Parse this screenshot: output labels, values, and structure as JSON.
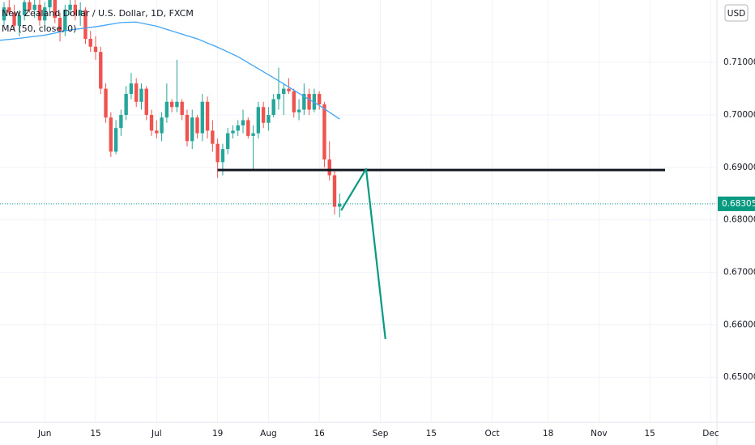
{
  "chart_data": {
    "type": "candlestick",
    "title": "New Zealand Dollar / U.S. Dollar, 1D, FXCM",
    "indicator_label": "MA (50, close, 0)",
    "currency": "USD",
    "xlim": [
      -8.8,
      132.2
    ],
    "ylim": [
      0.6414,
      0.7219
    ],
    "grid": true,
    "xticks": [
      {
        "value": 0,
        "label": "Jun"
      },
      {
        "value": 10,
        "label": "15"
      },
      {
        "value": 22,
        "label": "Jul"
      },
      {
        "value": 34,
        "label": "19"
      },
      {
        "value": 44,
        "label": "Aug"
      },
      {
        "value": 54,
        "label": "16"
      },
      {
        "value": 66,
        "label": "Sep"
      },
      {
        "value": 76,
        "label": "15"
      },
      {
        "value": 88,
        "label": "Oct"
      },
      {
        "value": 99,
        "label": "18"
      },
      {
        "value": 109,
        "label": "Nov"
      },
      {
        "value": 119,
        "label": "15"
      },
      {
        "value": 131,
        "label": "Dec"
      }
    ],
    "yticks": [
      {
        "value": 0.71,
        "label": "0.71000"
      },
      {
        "value": 0.7,
        "label": "0.70000"
      },
      {
        "value": 0.69,
        "label": "0.69000"
      },
      {
        "value": 0.68,
        "label": "0.68000"
      },
      {
        "value": 0.67,
        "label": "0.67000"
      },
      {
        "value": 0.66,
        "label": "0.66000"
      },
      {
        "value": 0.65,
        "label": "0.65000"
      }
    ],
    "up_color": "#26a69a",
    "down_color": "#ef5350",
    "candles": {
      "x": [
        -8,
        -7,
        -6,
        -5,
        -4,
        -3,
        -2,
        -1,
        0,
        1,
        2,
        3,
        4,
        5,
        6,
        7,
        8,
        9,
        10,
        11,
        12,
        13,
        14,
        15,
        16,
        17,
        18,
        19,
        20,
        21,
        22,
        23,
        24,
        25,
        26,
        27,
        28,
        29,
        30,
        31,
        32,
        33,
        34,
        35,
        36,
        37,
        38,
        39,
        40,
        41,
        42,
        43,
        44,
        45,
        46,
        47,
        48,
        49,
        50,
        51,
        52,
        53,
        54,
        55,
        56,
        57,
        58
      ],
      "open": [
        0.718,
        0.7205,
        0.7195,
        0.717,
        0.719,
        0.7215,
        0.72,
        0.721,
        0.718,
        0.7205,
        0.722,
        0.7185,
        0.716,
        0.72,
        0.721,
        0.719,
        0.72,
        0.7145,
        0.713,
        0.712,
        0.705,
        0.6995,
        0.693,
        0.6975,
        0.7,
        0.704,
        0.706,
        0.7025,
        0.705,
        0.7,
        0.697,
        0.6965,
        0.6995,
        0.7025,
        0.7015,
        0.7025,
        0.7,
        0.695,
        0.6995,
        0.6965,
        0.7025,
        0.697,
        0.6945,
        0.691,
        0.6935,
        0.6965,
        0.697,
        0.698,
        0.699,
        0.696,
        0.6965,
        0.7015,
        0.6985,
        0.7,
        0.703,
        0.704,
        0.705,
        0.7045,
        0.7005,
        0.701,
        0.704,
        0.701,
        0.704,
        0.702,
        0.6915,
        0.6885,
        0.6825
      ],
      "high": [
        0.7215,
        0.7225,
        0.721,
        0.72,
        0.723,
        0.723,
        0.722,
        0.7225,
        0.7215,
        0.723,
        0.7235,
        0.7195,
        0.721,
        0.7225,
        0.722,
        0.7215,
        0.7205,
        0.716,
        0.715,
        0.713,
        0.706,
        0.7005,
        0.699,
        0.701,
        0.7055,
        0.708,
        0.707,
        0.706,
        0.7055,
        0.701,
        0.699,
        0.7005,
        0.706,
        0.703,
        0.7105,
        0.703,
        0.701,
        0.701,
        0.7,
        0.704,
        0.7035,
        0.699,
        0.6955,
        0.6945,
        0.6975,
        0.698,
        0.699,
        0.701,
        0.6995,
        0.698,
        0.7025,
        0.7025,
        0.7015,
        0.704,
        0.709,
        0.706,
        0.707,
        0.705,
        0.703,
        0.706,
        0.705,
        0.705,
        0.7045,
        0.7025,
        0.695,
        0.6895,
        0.685
      ],
      "low": [
        0.717,
        0.719,
        0.716,
        0.715,
        0.718,
        0.7195,
        0.7185,
        0.717,
        0.716,
        0.7195,
        0.7175,
        0.714,
        0.715,
        0.719,
        0.718,
        0.717,
        0.7135,
        0.712,
        0.7105,
        0.704,
        0.6985,
        0.692,
        0.6925,
        0.696,
        0.699,
        0.703,
        0.7015,
        0.701,
        0.699,
        0.696,
        0.6955,
        0.695,
        0.6985,
        0.7005,
        0.7005,
        0.699,
        0.694,
        0.6935,
        0.6955,
        0.695,
        0.6955,
        0.693,
        0.688,
        0.6885,
        0.6925,
        0.6955,
        0.696,
        0.6965,
        0.6955,
        0.6895,
        0.6955,
        0.6975,
        0.697,
        0.6995,
        0.701,
        0.7,
        0.704,
        0.6995,
        0.699,
        0.7,
        0.7,
        0.7005,
        0.701,
        0.69,
        0.6875,
        0.681,
        0.6805
      ],
      "close": [
        0.7205,
        0.7195,
        0.717,
        0.719,
        0.7215,
        0.72,
        0.721,
        0.718,
        0.7205,
        0.722,
        0.7185,
        0.716,
        0.72,
        0.721,
        0.719,
        0.72,
        0.7145,
        0.713,
        0.712,
        0.705,
        0.6995,
        0.693,
        0.6975,
        0.7,
        0.704,
        0.706,
        0.7025,
        0.705,
        0.7,
        0.697,
        0.6965,
        0.6995,
        0.7025,
        0.7015,
        0.7025,
        0.7,
        0.695,
        0.6995,
        0.6965,
        0.7025,
        0.697,
        0.6945,
        0.691,
        0.6935,
        0.6965,
        0.697,
        0.698,
        0.699,
        0.696,
        0.6965,
        0.7015,
        0.6985,
        0.7,
        0.703,
        0.704,
        0.705,
        0.7045,
        0.7005,
        0.701,
        0.704,
        0.701,
        0.704,
        0.702,
        0.6915,
        0.6885,
        0.6825,
        0.68305
      ]
    },
    "ma": {
      "color": "#42a5f5",
      "x": [
        -9,
        -5,
        0,
        5,
        10,
        15,
        18,
        22,
        26,
        30,
        34,
        38,
        42,
        46,
        50,
        54,
        58
      ],
      "values": [
        0.7142,
        0.7146,
        0.7152,
        0.7162,
        0.7168,
        0.7176,
        0.7177,
        0.7169,
        0.7157,
        0.7145,
        0.7129,
        0.7111,
        0.7088,
        0.7065,
        0.7041,
        0.7018,
        0.6992
      ]
    },
    "level": {
      "color": "#131722",
      "value": 0.6895,
      "x": [
        34,
        122
      ]
    },
    "projection": {
      "color": "#089981",
      "x": [
        58.3,
        63.2,
        67
      ],
      "values": [
        0.6818,
        0.6897,
        0.6573
      ]
    },
    "last_price_color": "#089981"
  }
}
